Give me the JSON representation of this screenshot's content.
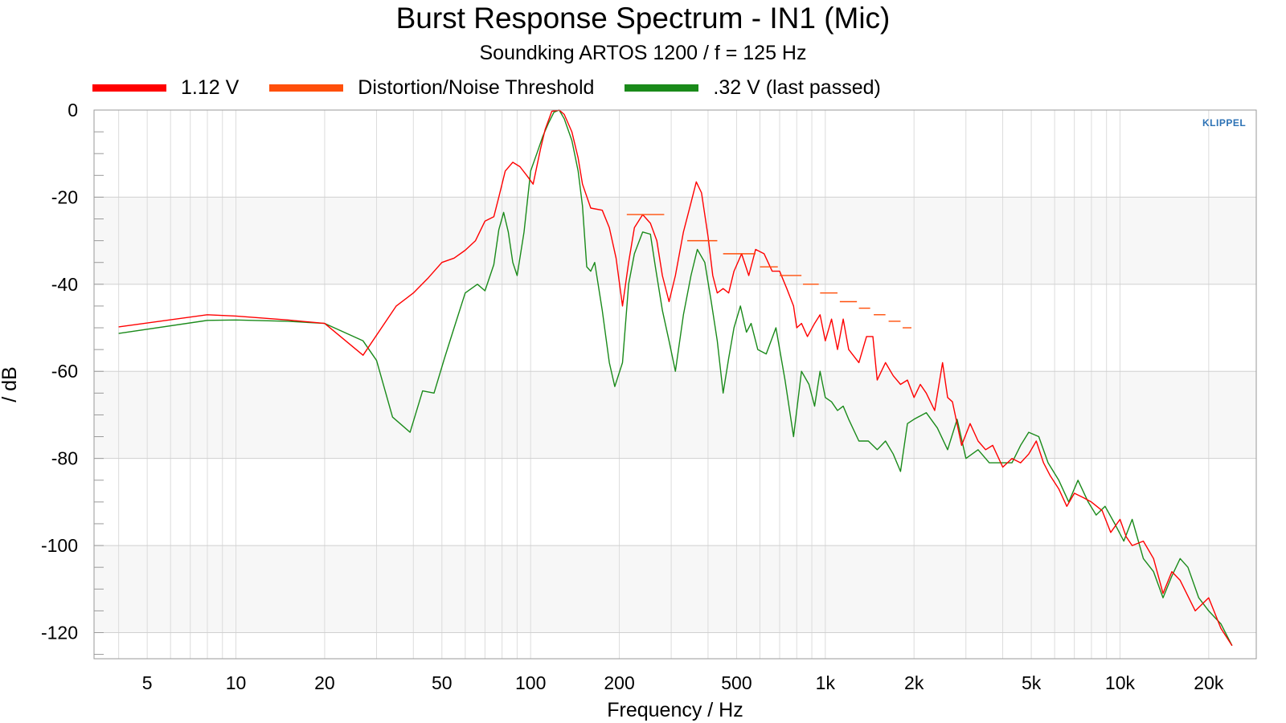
{
  "chart_data": {
    "type": "line",
    "title": "Burst Response Spectrum - IN1 (Mic)",
    "subtitle": "Soundking ARTOS 1200 / f = 125 Hz",
    "xlabel": "Frequency / Hz",
    "ylabel": "/ dB",
    "x_scale": "log",
    "xlim": [
      3.3,
      29000
    ],
    "ylim": [
      -126,
      0
    ],
    "x_ticks": [
      5,
      10,
      20,
      50,
      100,
      200,
      500,
      1000,
      2000,
      5000,
      10000,
      20000
    ],
    "x_tick_labels": [
      "5",
      "10",
      "20",
      "50",
      "100",
      "200",
      "500",
      "1k",
      "2k",
      "5k",
      "10k",
      "20k"
    ],
    "y_ticks": [
      0,
      -20,
      -40,
      -60,
      -80,
      -100,
      -120
    ],
    "y_tick_labels": [
      "0",
      "-20",
      "-40",
      "-60",
      "-80",
      "-100",
      "-120"
    ],
    "grid": true,
    "legend_position": "top-left",
    "logo_text": "KLIPPEL",
    "series": [
      {
        "name": "1.12 V",
        "color": "#ff0000",
        "points": [
          [
            4,
            -49.8
          ],
          [
            8,
            -47
          ],
          [
            10,
            -47.3
          ],
          [
            15,
            -48.2
          ],
          [
            20,
            -49
          ],
          [
            27,
            -56.3
          ],
          [
            35,
            -45
          ],
          [
            40,
            -42
          ],
          [
            45,
            -38.5
          ],
          [
            50,
            -35
          ],
          [
            55,
            -34
          ],
          [
            60,
            -32.2
          ],
          [
            65,
            -30
          ],
          [
            70,
            -25.5
          ],
          [
            75,
            -24.5
          ],
          [
            78,
            -20
          ],
          [
            82,
            -14
          ],
          [
            87,
            -12
          ],
          [
            92,
            -13
          ],
          [
            97,
            -15
          ],
          [
            102,
            -17
          ],
          [
            108,
            -9
          ],
          [
            112,
            -4.5
          ],
          [
            118,
            -0.3
          ],
          [
            125,
            0
          ],
          [
            130,
            -1
          ],
          [
            138,
            -5
          ],
          [
            145,
            -11
          ],
          [
            150,
            -17
          ],
          [
            160,
            -22.5
          ],
          [
            175,
            -23
          ],
          [
            185,
            -27
          ],
          [
            195,
            -34
          ],
          [
            205,
            -45
          ],
          [
            215,
            -35
          ],
          [
            225,
            -27
          ],
          [
            240,
            -24
          ],
          [
            255,
            -26
          ],
          [
            268,
            -30
          ],
          [
            280,
            -38
          ],
          [
            295,
            -44
          ],
          [
            310,
            -38
          ],
          [
            330,
            -28
          ],
          [
            348,
            -22
          ],
          [
            365,
            -16.5
          ],
          [
            380,
            -19
          ],
          [
            400,
            -29
          ],
          [
            415,
            -38
          ],
          [
            430,
            -42
          ],
          [
            450,
            -41
          ],
          [
            470,
            -42
          ],
          [
            490,
            -37
          ],
          [
            520,
            -33
          ],
          [
            550,
            -38
          ],
          [
            580,
            -32
          ],
          [
            620,
            -33
          ],
          [
            660,
            -37
          ],
          [
            700,
            -37
          ],
          [
            740,
            -41
          ],
          [
            780,
            -45
          ],
          [
            800,
            -50
          ],
          [
            830,
            -49
          ],
          [
            870,
            -52
          ],
          [
            920,
            -49
          ],
          [
            960,
            -47
          ],
          [
            1000,
            -53
          ],
          [
            1050,
            -48
          ],
          [
            1100,
            -55
          ],
          [
            1150,
            -48
          ],
          [
            1200,
            -55
          ],
          [
            1300,
            -58
          ],
          [
            1380,
            -52
          ],
          [
            1450,
            -52
          ],
          [
            1500,
            -62
          ],
          [
            1600,
            -58
          ],
          [
            1700,
            -61
          ],
          [
            1800,
            -63
          ],
          [
            1900,
            -62
          ],
          [
            2000,
            -66
          ],
          [
            2100,
            -63
          ],
          [
            2200,
            -65
          ],
          [
            2350,
            -69
          ],
          [
            2500,
            -58
          ],
          [
            2600,
            -66
          ],
          [
            2700,
            -67
          ],
          [
            2900,
            -77
          ],
          [
            3100,
            -72
          ],
          [
            3300,
            -76
          ],
          [
            3500,
            -78
          ],
          [
            3700,
            -77
          ],
          [
            4000,
            -82
          ],
          [
            4300,
            -80
          ],
          [
            4600,
            -81
          ],
          [
            4900,
            -79
          ],
          [
            5200,
            -76
          ],
          [
            5500,
            -81
          ],
          [
            5800,
            -84
          ],
          [
            6200,
            -87
          ],
          [
            6600,
            -91
          ],
          [
            7000,
            -88
          ],
          [
            7500,
            -89
          ],
          [
            8000,
            -90
          ],
          [
            8700,
            -92
          ],
          [
            9300,
            -97
          ],
          [
            10000,
            -94
          ],
          [
            10500,
            -98
          ],
          [
            11000,
            -100
          ],
          [
            12000,
            -99
          ],
          [
            13000,
            -103
          ],
          [
            14000,
            -111
          ],
          [
            15000,
            -106
          ],
          [
            16000,
            -108
          ],
          [
            18000,
            -115
          ],
          [
            20000,
            -112
          ],
          [
            22000,
            -119
          ],
          [
            24000,
            -123
          ]
        ]
      },
      {
        "name": "Distortion/Noise Threshold",
        "color": "#ff4f0a",
        "segments": [
          [
            212,
            284,
            -24
          ],
          [
            340,
            430,
            -30
          ],
          [
            450,
            580,
            -33
          ],
          [
            600,
            690,
            -36
          ],
          [
            700,
            830,
            -38
          ],
          [
            840,
            950,
            -40
          ],
          [
            960,
            1100,
            -42
          ],
          [
            1120,
            1280,
            -44
          ],
          [
            1300,
            1420,
            -45.5
          ],
          [
            1460,
            1600,
            -47
          ],
          [
            1640,
            1800,
            -48.5
          ],
          [
            1830,
            1960,
            -50
          ]
        ]
      },
      {
        "name": ".32 V (last passed)",
        "color": "#1a8a1a",
        "points": [
          [
            4,
            -51.3
          ],
          [
            8,
            -48.3
          ],
          [
            10,
            -48.2
          ],
          [
            15,
            -48.5
          ],
          [
            20,
            -49
          ],
          [
            27,
            -53
          ],
          [
            30,
            -57.5
          ],
          [
            34,
            -70.5
          ],
          [
            39,
            -74
          ],
          [
            43,
            -64.5
          ],
          [
            47,
            -65
          ],
          [
            51,
            -57
          ],
          [
            55,
            -50
          ],
          [
            60,
            -42
          ],
          [
            66,
            -40
          ],
          [
            70,
            -41.5
          ],
          [
            75,
            -35.5
          ],
          [
            78,
            -27.5
          ],
          [
            81,
            -23.5
          ],
          [
            84,
            -28
          ],
          [
            87,
            -35
          ],
          [
            90,
            -38
          ],
          [
            95,
            -28
          ],
          [
            100,
            -14
          ],
          [
            105,
            -10
          ],
          [
            110,
            -6
          ],
          [
            115,
            -3
          ],
          [
            120,
            -0.5
          ],
          [
            125,
            0
          ],
          [
            130,
            -2
          ],
          [
            138,
            -7
          ],
          [
            145,
            -14
          ],
          [
            150,
            -22
          ],
          [
            155,
            -36
          ],
          [
            160,
            -37
          ],
          [
            165,
            -35
          ],
          [
            175,
            -46
          ],
          [
            185,
            -58
          ],
          [
            193,
            -63.5
          ],
          [
            205,
            -58
          ],
          [
            215,
            -40
          ],
          [
            225,
            -33
          ],
          [
            240,
            -28
          ],
          [
            255,
            -28.5
          ],
          [
            265,
            -36
          ],
          [
            280,
            -46
          ],
          [
            295,
            -53
          ],
          [
            310,
            -60
          ],
          [
            330,
            -47
          ],
          [
            350,
            -38
          ],
          [
            368,
            -32
          ],
          [
            390,
            -35
          ],
          [
            410,
            -44
          ],
          [
            430,
            -53
          ],
          [
            450,
            -65
          ],
          [
            470,
            -57
          ],
          [
            490,
            -50
          ],
          [
            515,
            -45
          ],
          [
            540,
            -51
          ],
          [
            560,
            -49
          ],
          [
            590,
            -55
          ],
          [
            630,
            -56
          ],
          [
            680,
            -50
          ],
          [
            730,
            -62
          ],
          [
            780,
            -75
          ],
          [
            830,
            -60
          ],
          [
            880,
            -63
          ],
          [
            920,
            -68
          ],
          [
            960,
            -60
          ],
          [
            1000,
            -66
          ],
          [
            1050,
            -67
          ],
          [
            1100,
            -69
          ],
          [
            1150,
            -68
          ],
          [
            1200,
            -71
          ],
          [
            1300,
            -76
          ],
          [
            1400,
            -76
          ],
          [
            1500,
            -78
          ],
          [
            1600,
            -76
          ],
          [
            1700,
            -79
          ],
          [
            1800,
            -83
          ],
          [
            1900,
            -72
          ],
          [
            2000,
            -71
          ],
          [
            2200,
            -69.5
          ],
          [
            2400,
            -73
          ],
          [
            2600,
            -78
          ],
          [
            2800,
            -71
          ],
          [
            3000,
            -80
          ],
          [
            3300,
            -78
          ],
          [
            3600,
            -81
          ],
          [
            4000,
            -81
          ],
          [
            4300,
            -81
          ],
          [
            4600,
            -77
          ],
          [
            4900,
            -74
          ],
          [
            5300,
            -75
          ],
          [
            5700,
            -81
          ],
          [
            6200,
            -85
          ],
          [
            6700,
            -90
          ],
          [
            7200,
            -85
          ],
          [
            7800,
            -90
          ],
          [
            8300,
            -93
          ],
          [
            8900,
            -91
          ],
          [
            9600,
            -95
          ],
          [
            10300,
            -99
          ],
          [
            11000,
            -94
          ],
          [
            12000,
            -103
          ],
          [
            13000,
            -106
          ],
          [
            14000,
            -112
          ],
          [
            15000,
            -107
          ],
          [
            16000,
            -103
          ],
          [
            17000,
            -105
          ],
          [
            18500,
            -112
          ],
          [
            20000,
            -115
          ],
          [
            22000,
            -118
          ],
          [
            24000,
            -123
          ]
        ]
      }
    ]
  }
}
